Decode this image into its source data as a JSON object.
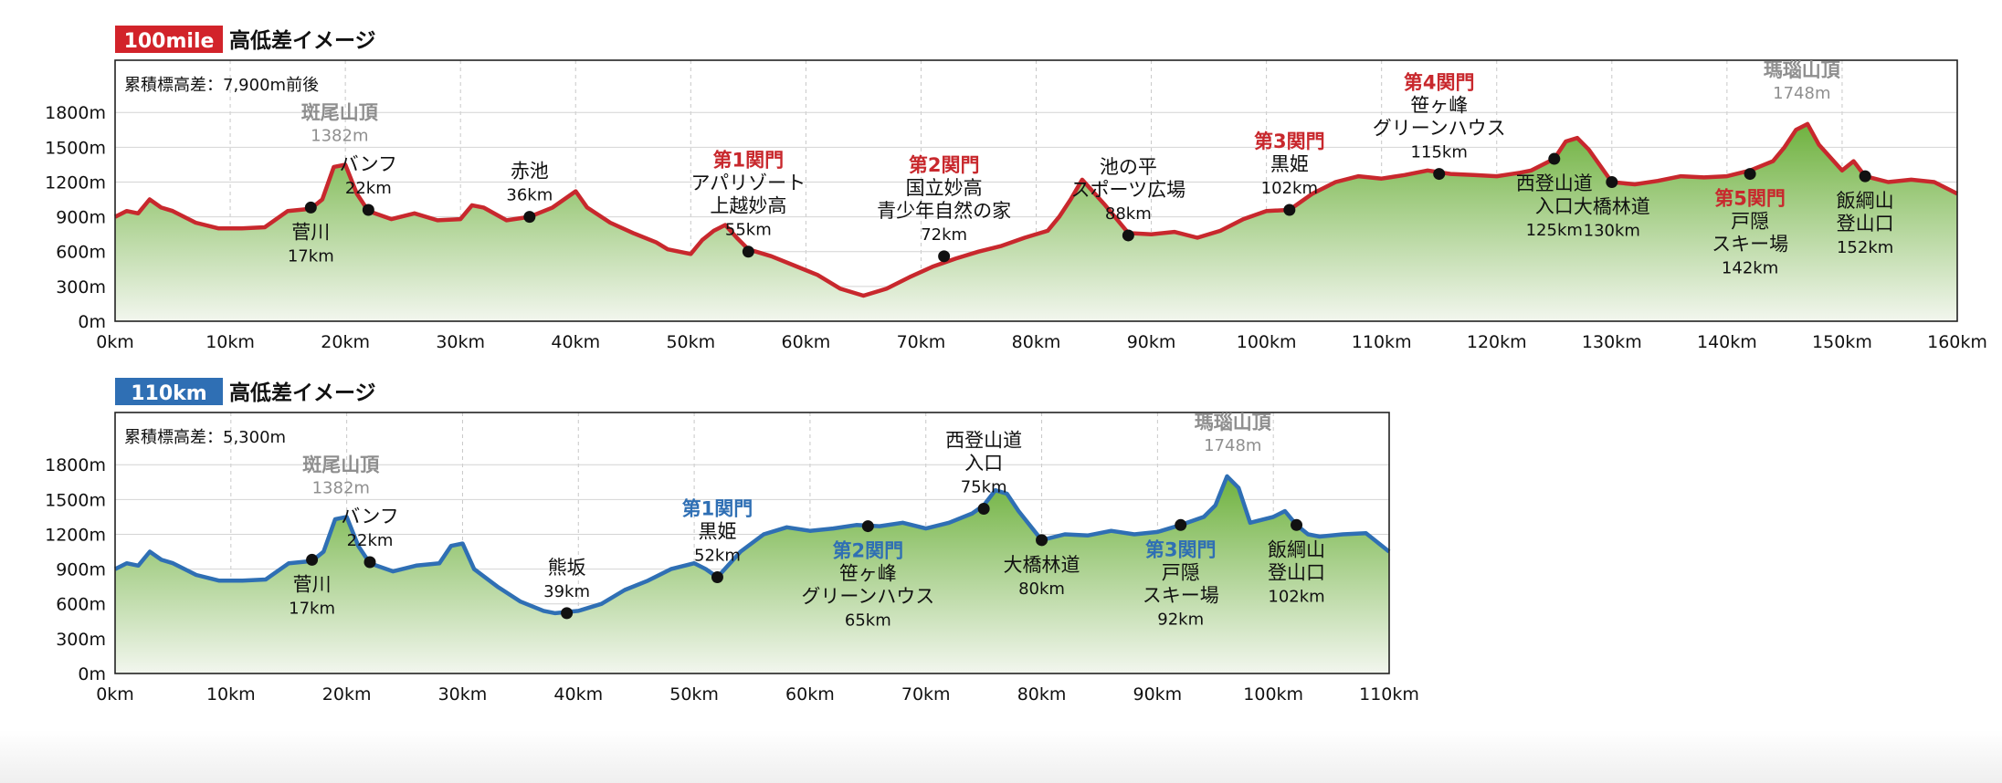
{
  "chart_data": [
    {
      "type": "area",
      "badge": "100mile",
      "badge_color": "#d2232a",
      "title": "高低差イメージ",
      "cumulative_label": "累積標高差：7,900m前後",
      "line_color": "#c8282d",
      "fill_top_color": "#6fb23f",
      "fill_bottom_color": "#f2f6ee",
      "xlim": [
        0,
        160
      ],
      "ylim": [
        0,
        2250
      ],
      "y_ticks": [
        0,
        300,
        600,
        900,
        1200,
        1500,
        1800
      ],
      "y_tick_labels": [
        "0m",
        "300m",
        "600m",
        "900m",
        "1200m",
        "1500m",
        "1800m"
      ],
      "x_ticks": [
        0,
        10,
        20,
        30,
        40,
        50,
        60,
        70,
        80,
        90,
        100,
        110,
        120,
        130,
        140,
        150,
        160
      ],
      "x_tick_labels": [
        "0km",
        "10km",
        "20km",
        "30km",
        "40km",
        "50km",
        "60km",
        "70km",
        "80km",
        "90km",
        "100km",
        "110km",
        "120km",
        "130km",
        "140km",
        "150km",
        "160km"
      ],
      "grid": true,
      "profile_x_km": [
        0,
        1,
        2,
        3,
        4,
        5,
        7,
        9,
        11,
        13,
        15,
        17,
        18,
        19,
        20,
        21,
        22,
        24,
        26,
        28,
        30,
        31,
        32,
        34,
        36,
        38,
        40,
        41,
        43,
        45,
        47,
        48,
        50,
        51,
        52,
        53,
        54,
        55,
        57,
        59,
        61,
        63,
        65,
        67,
        69,
        71,
        73,
        75,
        77,
        79,
        81,
        82,
        83,
        84,
        86,
        88,
        90,
        92,
        94,
        96,
        98,
        100,
        102,
        104,
        106,
        108,
        110,
        112,
        114,
        116,
        118,
        120,
        122,
        123,
        124,
        125,
        126,
        127,
        128,
        130,
        132,
        134,
        136,
        138,
        140,
        142,
        144,
        145,
        146,
        147,
        148,
        150,
        151,
        152,
        154,
        156,
        158,
        160
      ],
      "profile_elev_m": [
        900,
        950,
        930,
        1050,
        980,
        950,
        850,
        800,
        800,
        810,
        950,
        970,
        1050,
        1330,
        1350,
        1100,
        950,
        880,
        930,
        870,
        880,
        1000,
        980,
        870,
        900,
        980,
        1120,
        980,
        850,
        760,
        680,
        620,
        580,
        700,
        780,
        830,
        720,
        620,
        560,
        480,
        400,
        280,
        220,
        280,
        380,
        470,
        540,
        600,
        650,
        720,
        780,
        900,
        1050,
        1220,
        1000,
        760,
        750,
        770,
        720,
        780,
        880,
        950,
        960,
        1100,
        1200,
        1250,
        1230,
        1260,
        1300,
        1270,
        1260,
        1250,
        1280,
        1300,
        1350,
        1400,
        1550,
        1580,
        1480,
        1200,
        1180,
        1210,
        1250,
        1240,
        1250,
        1300,
        1380,
        1500,
        1650,
        1700,
        1520,
        1300,
        1380,
        1250,
        1200,
        1220,
        1200,
        1100
      ],
      "peaks": [
        {
          "name": "斑尾山頂",
          "elev": "1382m",
          "km": 19.5,
          "y": 1382
        },
        {
          "name": "瑪瑙山頂",
          "elev": "1748m",
          "km": 146.5,
          "y": 1748
        }
      ],
      "points": [
        {
          "km": 17,
          "elev": 980,
          "label": "菅川",
          "dist": "17km",
          "pos": "below"
        },
        {
          "km": 22,
          "elev": 960,
          "label": "バンフ",
          "dist": "22km",
          "pos": "above"
        },
        {
          "km": 36,
          "elev": 900,
          "label": "赤池",
          "dist": "36km",
          "pos": "above"
        },
        {
          "km": 55,
          "elev": 600,
          "gate": "第1関門",
          "label": "アパリゾート上越妙高",
          "dist": "55km",
          "pos": "above"
        },
        {
          "km": 72,
          "elev": 560,
          "gate": "第2関門",
          "label": "国立妙高青少年自然の家",
          "dist": "72km",
          "pos": "above"
        },
        {
          "km": 88,
          "elev": 740,
          "label": "池の平スポーツ広場",
          "dist": "88km",
          "pos": "above"
        },
        {
          "km": 102,
          "elev": 960,
          "gate": "第3関門",
          "label": "黒姫",
          "dist": "102km",
          "pos": "above"
        },
        {
          "km": 115,
          "elev": 1270,
          "gate": "第4関門",
          "label": "笹ヶ峰グリーンハウス",
          "dist": "115km",
          "pos": "above"
        },
        {
          "km": 125,
          "elev": 1400,
          "label": "西登山道入口",
          "dist": "125km",
          "pos": "below"
        },
        {
          "km": 130,
          "elev": 1200,
          "label": "大橋林道",
          "dist": "130km",
          "pos": "below"
        },
        {
          "km": 142,
          "elev": 1270,
          "gate": "第5関門",
          "label": "戸隠スキー場",
          "dist": "142km",
          "pos": "below"
        },
        {
          "km": 152,
          "elev": 1250,
          "label": "飯綱山登山口",
          "dist": "152km",
          "pos": "below"
        }
      ]
    },
    {
      "type": "area",
      "badge": "110km",
      "badge_color": "#2f6fb4",
      "title": "高低差イメージ",
      "cumulative_label": "累積標高差：5,300m",
      "line_color": "#2f6fb4",
      "fill_top_color": "#6fb23f",
      "fill_bottom_color": "#f2f6ee",
      "xlim": [
        0,
        110
      ],
      "ylim": [
        0,
        2250
      ],
      "y_ticks": [
        0,
        300,
        600,
        900,
        1200,
        1500,
        1800
      ],
      "y_tick_labels": [
        "0m",
        "300m",
        "600m",
        "900m",
        "1200m",
        "1500m",
        "1800m"
      ],
      "x_ticks": [
        0,
        10,
        20,
        30,
        40,
        50,
        60,
        70,
        80,
        90,
        100,
        110
      ],
      "x_tick_labels": [
        "0km",
        "10km",
        "20km",
        "30km",
        "40km",
        "50km",
        "60km",
        "70km",
        "80km",
        "90km",
        "100km",
        "110km"
      ],
      "grid": true,
      "profile_x_km": [
        0,
        1,
        2,
        3,
        4,
        5,
        7,
        9,
        11,
        13,
        15,
        17,
        18,
        19,
        20,
        21,
        22,
        24,
        26,
        28,
        29,
        30,
        31,
        33,
        35,
        37,
        38,
        40,
        42,
        44,
        46,
        48,
        50,
        51,
        52,
        54,
        56,
        58,
        60,
        62,
        64,
        66,
        68,
        70,
        72,
        74,
        75,
        76,
        77,
        78,
        80,
        82,
        84,
        86,
        88,
        90,
        92,
        94,
        95,
        96,
        97,
        98,
        100,
        101,
        102,
        103,
        104,
        106,
        108,
        110
      ],
      "profile_elev_m": [
        900,
        950,
        930,
        1050,
        980,
        950,
        850,
        800,
        800,
        810,
        950,
        970,
        1050,
        1330,
        1350,
        1100,
        950,
        880,
        930,
        950,
        1100,
        1120,
        900,
        750,
        620,
        540,
        520,
        540,
        600,
        720,
        800,
        900,
        950,
        900,
        830,
        1050,
        1200,
        1260,
        1230,
        1250,
        1280,
        1270,
        1300,
        1250,
        1300,
        1380,
        1450,
        1580,
        1550,
        1400,
        1150,
        1200,
        1190,
        1230,
        1200,
        1220,
        1280,
        1350,
        1450,
        1700,
        1600,
        1300,
        1350,
        1400,
        1280,
        1200,
        1180,
        1200,
        1210,
        1050
      ],
      "peaks": [
        {
          "name": "斑尾山頂",
          "elev": "1382m",
          "km": 19.5,
          "y": 1382
        },
        {
          "name": "瑪瑙山頂",
          "elev": "1748m",
          "km": 96.5,
          "y": 1748
        }
      ],
      "points": [
        {
          "km": 17,
          "elev": 980,
          "label": "菅川",
          "dist": "17km",
          "pos": "below"
        },
        {
          "km": 22,
          "elev": 960,
          "label": "バンフ",
          "dist": "22km",
          "pos": "above"
        },
        {
          "km": 39,
          "elev": 520,
          "label": "熊坂",
          "dist": "39km",
          "pos": "above"
        },
        {
          "km": 52,
          "elev": 830,
          "gate": "第1関門",
          "label": "黒姫",
          "dist": "52km",
          "pos": "above"
        },
        {
          "km": 65,
          "elev": 1270,
          "gate": "第2関門",
          "label": "笹ヶ峰グリーンハウス",
          "dist": "65km",
          "pos": "below"
        },
        {
          "km": 75,
          "elev": 1420,
          "label": "西登山道入口",
          "dist": "75km",
          "pos": "above"
        },
        {
          "km": 80,
          "elev": 1150,
          "label": "大橋林道",
          "dist": "80km",
          "pos": "below"
        },
        {
          "km": 92,
          "elev": 1280,
          "gate": "第3関門",
          "label": "戸隠スキー場",
          "dist": "92km",
          "pos": "below"
        },
        {
          "km": 102,
          "elev": 1280,
          "label": "飯綱山登山口",
          "dist": "102km",
          "pos": "below"
        }
      ]
    }
  ]
}
